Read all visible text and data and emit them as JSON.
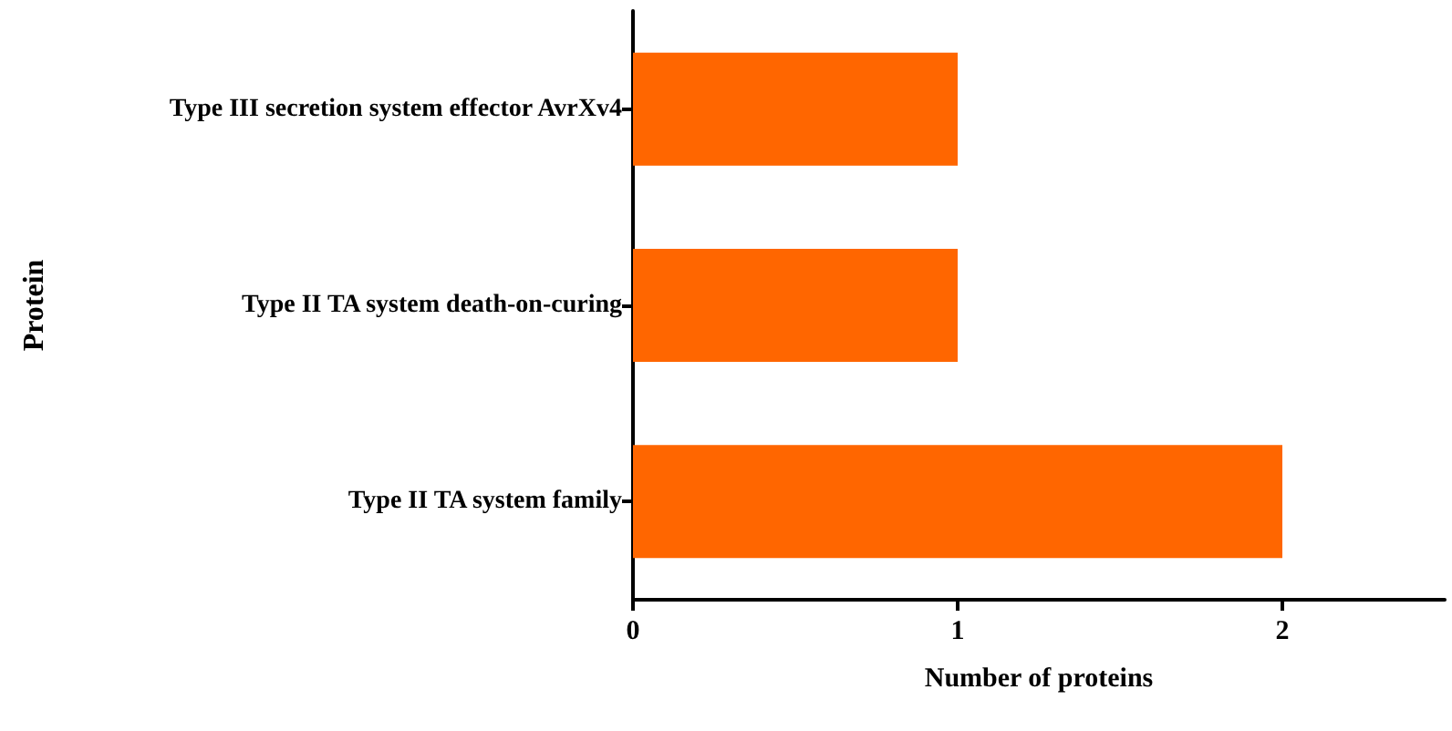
{
  "chart_data": {
    "type": "bar",
    "orientation": "horizontal",
    "xlabel": "Number of proteins",
    "ylabel": "Protein",
    "categories": [
      "Type III secretion system effector AvrXv4",
      "Type II TA system death-on-curing",
      "Type II TA system family"
    ],
    "values": [
      1,
      1,
      2
    ],
    "color": "#ff6600",
    "xlim": [
      0,
      2.5
    ],
    "xticks": [
      0,
      1,
      2
    ],
    "grid": false
  }
}
